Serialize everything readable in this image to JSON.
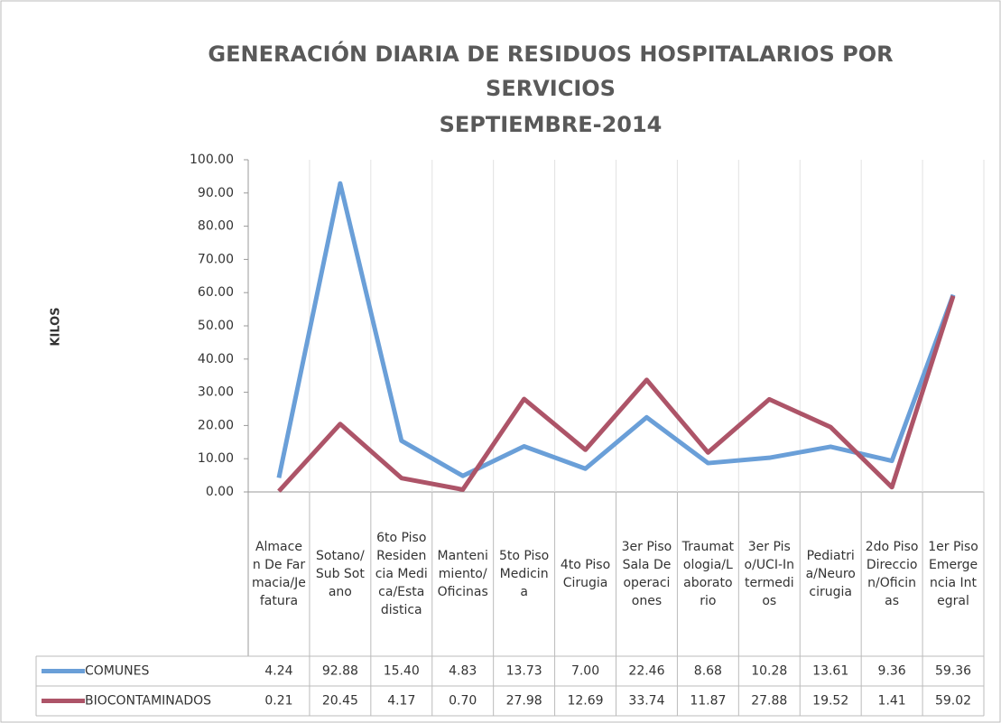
{
  "chart_data": {
    "type": "line",
    "title": "GENERACIÓN DIARIA DE RESIDUOS HOSPITALARIOS POR SERVICIOS",
    "subtitle": "SEPTIEMBRE-2014",
    "y_label": "KILOS",
    "categories": [
      "Almacen De Farmacia/Jefatura",
      "Sotano/Sub Sotano",
      "6to Piso Residencia Medica/Estadistica",
      "Mantenimiento/Oficinas",
      "5to Piso Medicina",
      "4to Piso Cirugia",
      "3er Piso Sala De operaciones",
      "Traumatologia/Laboratorio",
      "3er Piso/UCI-Intermedios",
      "Pediatria/Neurocirugia",
      "2do Piso Direccion/Oficinas",
      "1er Piso Emergencia Integral"
    ],
    "series": [
      {
        "name": "COMUNES",
        "color": "#6a9fd8",
        "values": [
          4.24,
          92.88,
          15.4,
          4.83,
          13.73,
          7,
          22.46,
          8.68,
          10.28,
          13.61,
          9.36,
          59.36
        ],
        "value_labels": [
          "4.24",
          "92.88",
          "15.40",
          "4.83",
          "13.73",
          "7.00",
          "22.46",
          "8.68",
          "10.28",
          "13.61",
          "9.36",
          "59.36"
        ]
      },
      {
        "name": "BIOCONTAMINADOS",
        "color": "#ad5468",
        "values": [
          0.21,
          20.45,
          4.17,
          0.7,
          27.98,
          12.69,
          33.74,
          11.87,
          27.88,
          19.52,
          1.41,
          59.02
        ],
        "value_labels": [
          "0.21",
          "20.45",
          "4.17",
          "0.70",
          "27.98",
          "12.69",
          "33.74",
          "11.87",
          "27.88",
          "19.52",
          "1.41",
          "59.02"
        ]
      }
    ],
    "ylim": [
      0,
      100
    ],
    "yticks": [
      {
        "value": 0,
        "label": "0.00"
      },
      {
        "value": 10,
        "label": "10.00"
      },
      {
        "value": 20,
        "label": "20.00"
      },
      {
        "value": 30,
        "label": "30.00"
      },
      {
        "value": 40,
        "label": "40.00"
      },
      {
        "value": 50,
        "label": "50.00"
      },
      {
        "value": 60,
        "label": "60.00"
      },
      {
        "value": 70,
        "label": "70.00"
      },
      {
        "value": 80,
        "label": "80.00"
      },
      {
        "value": 90,
        "label": "90.00"
      },
      {
        "value": 100,
        "label": "100.00"
      }
    ],
    "data_table": true
  }
}
